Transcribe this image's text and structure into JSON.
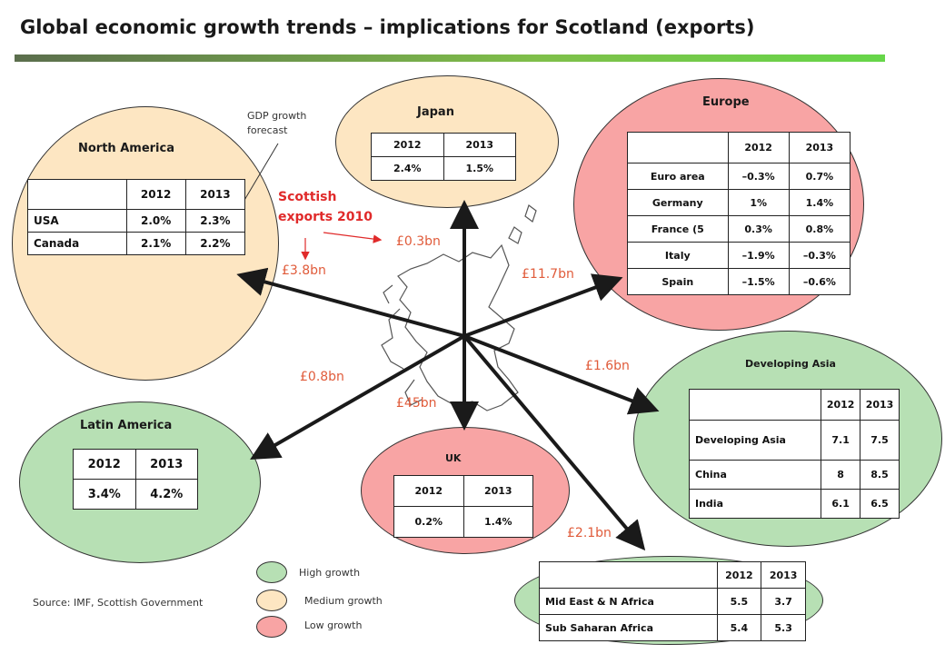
{
  "title": "Global economic growth trends – implications for Scotland (exports)",
  "annotations": {
    "gdp_forecast": [
      "GDP growth",
      "forecast"
    ],
    "scottish_exports": [
      "Scottish",
      "exports 2010"
    ]
  },
  "regions": {
    "north_america": {
      "name": "North America",
      "growth": "medium",
      "headers": [
        "",
        "2012",
        "2013"
      ],
      "rows": [
        [
          "USA",
          "2.0%",
          "2.3%"
        ],
        [
          "Canada",
          "2.1%",
          "2.2%"
        ]
      ],
      "exports": "£3.8bn"
    },
    "japan": {
      "name": "Japan",
      "growth": "medium",
      "headers": [
        "2012",
        "2013"
      ],
      "rows": [
        [
          "2.4%",
          "1.5%"
        ]
      ],
      "exports": "£0.3bn"
    },
    "europe": {
      "name": "Europe",
      "growth": "low",
      "headers": [
        "",
        "2012",
        "2013"
      ],
      "rows": [
        [
          "Euro area",
          "–0.3%",
          "0.7%"
        ],
        [
          "Germany",
          "1%",
          "1.4%"
        ],
        [
          "France (5",
          "0.3%",
          "0.8%"
        ],
        [
          "Italy",
          "–1.9%",
          "–0.3%"
        ],
        [
          "Spain",
          "–1.5%",
          "–0.6%"
        ]
      ],
      "exports": "£11.7bn"
    },
    "developing_asia": {
      "name": "Developing Asia",
      "growth": "high",
      "headers": [
        "",
        "2012",
        "2013"
      ],
      "rows": [
        [
          "Developing Asia",
          "7.1",
          "7.5"
        ],
        [
          "China",
          "8",
          "8.5"
        ],
        [
          "India",
          "6.1",
          "6.5"
        ]
      ],
      "exports": "£1.6bn"
    },
    "latin_america": {
      "name": "Latin America",
      "growth": "high",
      "headers": [
        "2012",
        "2013"
      ],
      "rows": [
        [
          "3.4%",
          "4.2%"
        ]
      ],
      "exports": "£0.8bn"
    },
    "uk": {
      "name": "UK",
      "growth": "low",
      "headers": [
        "2012",
        "2013"
      ],
      "rows": [
        [
          "0.2%",
          "1.4%"
        ]
      ],
      "exports": "£45bn"
    },
    "mena_ssa": {
      "growth": "high",
      "headers": [
        "",
        "2012",
        "2013"
      ],
      "rows": [
        [
          "Mid East & N Africa",
          "5.5",
          "3.7"
        ],
        [
          "Sub Saharan Africa",
          "5.4",
          "5.3"
        ]
      ],
      "exports": "£2.1bn"
    }
  },
  "legend": [
    {
      "label": "High growth",
      "color": "#b7e0b4"
    },
    {
      "label": "Medium growth",
      "color": "#fde6c2"
    },
    {
      "label": "Low growth",
      "color": "#f8a4a4"
    }
  ],
  "source": "Source: IMF, Scottish Government",
  "colors": {
    "high": "#b7e0b4",
    "medium": "#fde6c2",
    "low": "#f8a4a4",
    "arrow": "#1a1a1a",
    "highlight": "#e02a2a",
    "amount": "#e05b3a"
  }
}
